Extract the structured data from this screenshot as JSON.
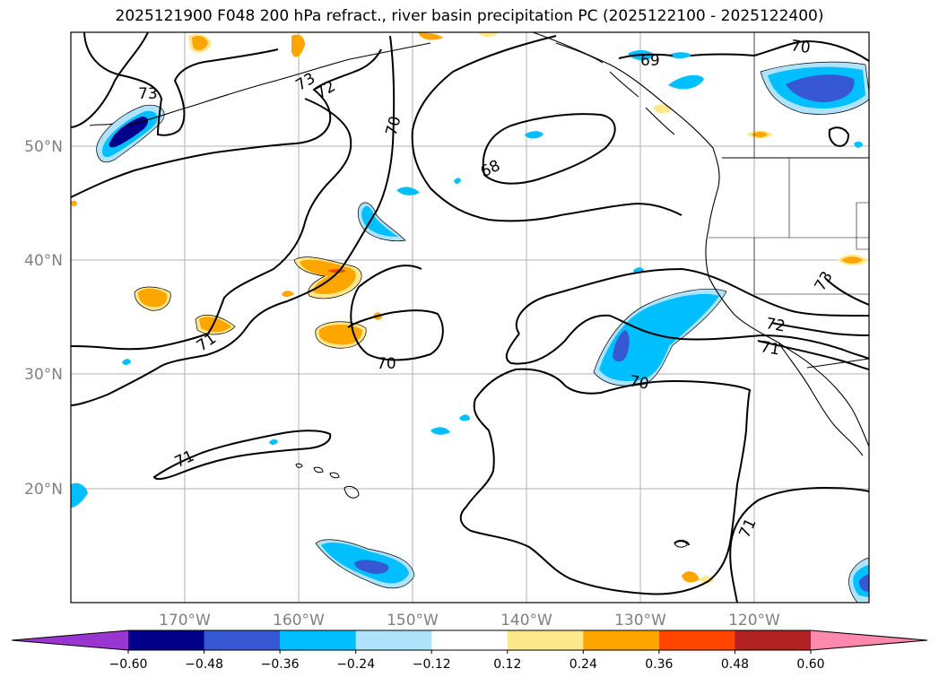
{
  "title": "2025121900 F048 200 hPa refract., river basin precipitation PC (2025122100 - 2025122400)",
  "lat_labels": [
    "50°N",
    "40°N",
    "30°N",
    "20°N"
  ],
  "lon_labels": [
    "170°W",
    "160°W",
    "150°W",
    "140°W",
    "130°W",
    "120°W"
  ],
  "contour_labels": [
    "73",
    "73",
    "72",
    "70",
    "68",
    "69",
    "70",
    "71",
    "70",
    "70",
    "72",
    "71",
    "73",
    "71",
    "71"
  ],
  "colorbar": {
    "colors": [
      "#9a35d1",
      "#00008b",
      "#3658d4",
      "#00bfff",
      "#aee3fb",
      "#ffffff",
      "#ffe88c",
      "#ffa500",
      "#ff4500",
      "#b22222",
      "#ff88ad"
    ],
    "tick_labels": [
      "−0.60",
      "−0.48",
      "−0.36",
      "−0.24",
      "−0.12",
      "0.12",
      "0.24",
      "0.36",
      "0.48",
      "0.60"
    ]
  }
}
